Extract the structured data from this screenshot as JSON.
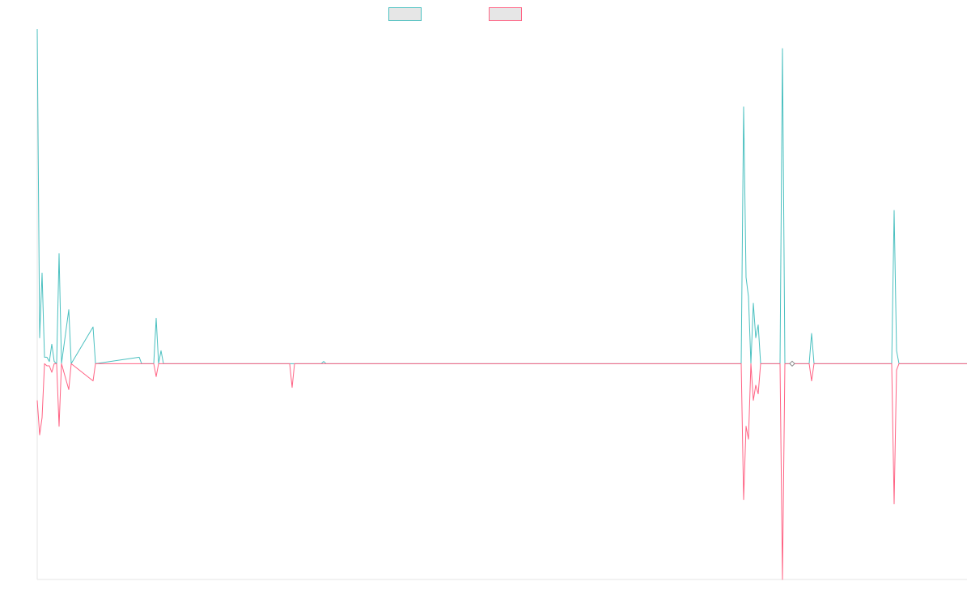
{
  "chart_data": {
    "type": "line",
    "title": "",
    "xlabel": "",
    "ylabel": "",
    "legend": "top-center",
    "grid": false,
    "x_count": 383,
    "ylim": [
      -1,
      1.55
    ],
    "series": [
      {
        "name": "",
        "color": "#4bc0c0",
        "fill": "#e6e6e6",
        "points": [
          [
            0,
            1.55
          ],
          [
            1,
            0.12
          ],
          [
            2,
            0.42
          ],
          [
            3,
            0.03
          ],
          [
            4,
            0.03
          ],
          [
            5,
            0.01
          ],
          [
            6,
            0.09
          ],
          [
            7,
            0.01
          ],
          [
            8,
            0.0
          ],
          [
            9,
            0.51
          ],
          [
            10,
            0.0
          ],
          [
            13,
            0.25
          ],
          [
            14,
            0.0
          ],
          [
            23,
            0.17
          ],
          [
            24,
            0.0
          ],
          [
            42,
            0.03
          ],
          [
            43,
            0.0
          ],
          [
            48,
            0.0
          ],
          [
            49,
            0.21
          ],
          [
            50,
            0.0
          ],
          [
            51,
            0.06
          ],
          [
            52,
            0.0
          ],
          [
            117,
            0.0
          ],
          [
            118,
            0.01
          ],
          [
            119,
            0.0
          ],
          [
            290,
            0.0
          ],
          [
            291,
            1.19
          ],
          [
            292,
            0.4
          ],
          [
            293,
            0.31
          ],
          [
            294,
            0.0
          ],
          [
            295,
            0.28
          ],
          [
            296,
            0.12
          ],
          [
            297,
            0.18
          ],
          [
            298,
            0.0
          ],
          [
            306,
            0.0
          ],
          [
            307,
            1.46
          ],
          [
            308,
            0.0
          ],
          [
            318,
            0.0
          ],
          [
            319,
            0.14
          ],
          [
            320,
            0.0
          ],
          [
            352,
            0.0
          ],
          [
            353,
            0.71
          ],
          [
            354,
            0.06
          ],
          [
            355,
            0.0
          ],
          [
            383,
            0.0
          ]
        ]
      },
      {
        "name": "",
        "color": "#ff6384",
        "fill": "#e6e6e6",
        "points": [
          [
            0,
            -0.17
          ],
          [
            1,
            -0.33
          ],
          [
            2,
            -0.25
          ],
          [
            3,
            0.0
          ],
          [
            4,
            -0.01
          ],
          [
            5,
            -0.01
          ],
          [
            6,
            -0.04
          ],
          [
            7,
            0.0
          ],
          [
            8,
            0.0
          ],
          [
            9,
            -0.29
          ],
          [
            10,
            0.0
          ],
          [
            13,
            -0.12
          ],
          [
            14,
            0.0
          ],
          [
            23,
            -0.08
          ],
          [
            24,
            0.0
          ],
          [
            48,
            0.0
          ],
          [
            49,
            -0.06
          ],
          [
            50,
            0.0
          ],
          [
            104,
            0.0
          ],
          [
            105,
            -0.11
          ],
          [
            106,
            0.0
          ],
          [
            290,
            0.0
          ],
          [
            291,
            -0.63
          ],
          [
            292,
            -0.29
          ],
          [
            293,
            -0.35
          ],
          [
            294,
            0.0
          ],
          [
            295,
            -0.17
          ],
          [
            296,
            -0.1
          ],
          [
            297,
            -0.14
          ],
          [
            298,
            0.0
          ],
          [
            306,
            0.0
          ],
          [
            307,
            -1.0
          ],
          [
            308,
            0.0
          ],
          [
            318,
            0.0
          ],
          [
            319,
            -0.08
          ],
          [
            320,
            0.0
          ],
          [
            352,
            0.0
          ],
          [
            353,
            -0.65
          ],
          [
            354,
            -0.03
          ],
          [
            355,
            0.0
          ],
          [
            383,
            0.0
          ]
        ]
      }
    ]
  }
}
